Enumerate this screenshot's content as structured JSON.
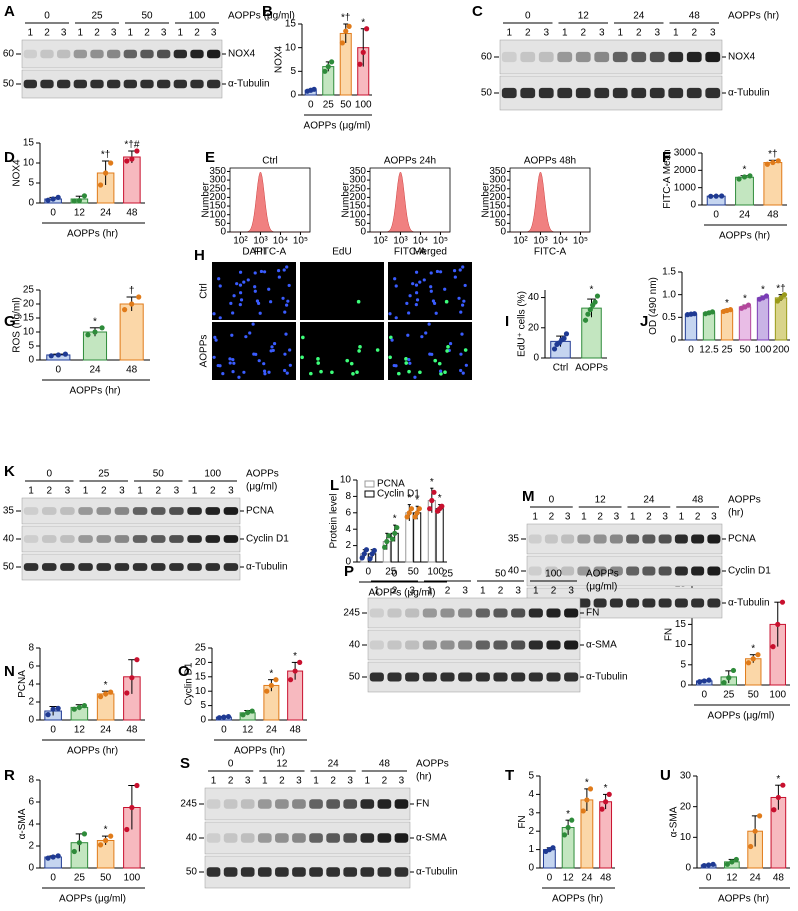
{
  "chart_data": [
    {
      "panel": "B",
      "type": "bar",
      "y_label": "NOX4",
      "x_label": "AOPPs (μg/ml)",
      "categories": [
        "0",
        "25",
        "50",
        "100"
      ],
      "values": [
        1,
        6,
        13,
        10
      ],
      "errors": [
        0.2,
        1,
        2,
        4
      ],
      "points": [
        [
          0.8,
          1,
          1.2
        ],
        [
          5,
          6,
          7
        ],
        [
          11,
          13.5,
          14.5
        ],
        [
          6.5,
          9,
          14
        ]
      ],
      "annotations": [
        null,
        null,
        "*†",
        "*"
      ],
      "colors": [
        "#c5d5f0",
        "#c3e6c0",
        "#fbd7a8",
        "#f7b9bf"
      ],
      "point_colors": [
        "#1f3a93",
        "#2e8b3a",
        "#e07b1a",
        "#c8102e"
      ],
      "ylim": [
        0,
        15
      ],
      "yticks": [
        0,
        5,
        10,
        15
      ]
    },
    {
      "panel": "D",
      "type": "bar",
      "y_label": "NOX4",
      "x_label": "AOPPs (hr)",
      "categories": [
        "0",
        "12",
        "24",
        "48"
      ],
      "values": [
        1,
        1,
        7.5,
        11.5
      ],
      "errors": [
        0.4,
        0.7,
        3,
        1.5
      ],
      "points": [
        [
          0.7,
          1,
          1.4
        ],
        [
          0.5,
          0.6,
          1.8
        ],
        [
          4.5,
          7.5,
          10
        ],
        [
          10.5,
          11,
          13
        ]
      ],
      "annotations": [
        null,
        null,
        "*†",
        "*†#"
      ],
      "colors": [
        "#c5d5f0",
        "#c3e6c0",
        "#fbd7a8",
        "#f7b9bf"
      ],
      "point_colors": [
        "#1f3a93",
        "#2e8b3a",
        "#e07b1a",
        "#c8102e"
      ],
      "ylim": [
        0,
        15
      ],
      "yticks": [
        0,
        5,
        10,
        15
      ]
    },
    {
      "panel": "F",
      "type": "bar",
      "y_label": "FITC-A Mean",
      "x_label": "AOPPs (hr)",
      "categories": [
        "0",
        "24",
        "48"
      ],
      "values": [
        510,
        1600,
        2450
      ],
      "errors": [
        20,
        90,
        130
      ],
      "points": [
        [
          500,
          510,
          520
        ],
        [
          1500,
          1620,
          1680
        ],
        [
          2350,
          2450,
          2550
        ]
      ],
      "annotations": [
        null,
        "*",
        "*†"
      ],
      "colors": [
        "#c5d5f0",
        "#c3e6c0",
        "#fbd7a8"
      ],
      "point_colors": [
        "#1f3a93",
        "#2e8b3a",
        "#e07b1a"
      ],
      "ylim": [
        0,
        3000
      ],
      "yticks": [
        0,
        1000,
        2000,
        3000
      ]
    },
    {
      "panel": "G",
      "type": "bar",
      "y_label": "ROS (ng/ml)",
      "x_label": "AOPPs (hr)",
      "categories": [
        "0",
        "24",
        "48"
      ],
      "values": [
        1.8,
        10,
        20
      ],
      "errors": [
        0.3,
        1.5,
        2.5
      ],
      "points": [
        [
          1.5,
          1.8,
          2.1
        ],
        [
          9,
          10,
          11.5
        ],
        [
          18,
          20,
          22.5
        ]
      ],
      "annotations": [
        null,
        "*",
        "†"
      ],
      "colors": [
        "#c5d5f0",
        "#c3e6c0",
        "#fbd7a8"
      ],
      "point_colors": [
        "#1f3a93",
        "#2e8b3a",
        "#e07b1a"
      ],
      "ylim": [
        0,
        25
      ],
      "yticks": [
        0,
        5,
        10,
        15,
        20,
        25
      ]
    },
    {
      "panel": "I",
      "type": "bar",
      "y_label": "EdU⁺ cells (%)",
      "categories": [
        "Ctrl",
        "AOPPs"
      ],
      "values": [
        11,
        33
      ],
      "errors": [
        3.5,
        6
      ],
      "points": [
        [
          6,
          9,
          10,
          12,
          13,
          16
        ],
        [
          25,
          29,
          32,
          35,
          37,
          41
        ]
      ],
      "annotations": [
        null,
        "*"
      ],
      "colors": [
        "#c5d5f0",
        "#c3e6c0"
      ],
      "point_colors": [
        "#1f3a93",
        "#2e8b3a"
      ],
      "ylim": [
        0,
        45
      ],
      "yticks": [
        0,
        20,
        40
      ]
    },
    {
      "panel": "J",
      "type": "bar",
      "y_label": "OD (490 nm)",
      "categories": [
        "0",
        "12.5",
        "25",
        "50",
        "100",
        "200"
      ],
      "values": [
        0.57,
        0.6,
        0.65,
        0.73,
        0.93,
        0.93
      ],
      "errors": [
        0.02,
        0.02,
        0.03,
        0.04,
        0.04,
        0.07
      ],
      "points": [
        [
          0.56,
          0.57,
          0.58
        ],
        [
          0.58,
          0.6,
          0.62
        ],
        [
          0.63,
          0.65,
          0.67
        ],
        [
          0.7,
          0.73,
          0.77
        ],
        [
          0.9,
          0.93,
          0.97
        ],
        [
          0.86,
          0.93,
          1.0
        ]
      ],
      "annotations": [
        null,
        null,
        "*",
        "*",
        "*",
        "*†"
      ],
      "colors": [
        "#c5d5f0",
        "#c3e6c0",
        "#fbd7a8",
        "#e9bde6",
        "#c9b3e6",
        "#d9d48a"
      ],
      "point_colors": [
        "#1f3a93",
        "#2e8b3a",
        "#e07b1a",
        "#b3479c",
        "#7a3db5",
        "#9a9a1a"
      ],
      "ylim": [
        0,
        1.5
      ],
      "yticks": [
        0,
        0.5,
        {
          "value": 1,
          "label": "1.0"
        },
        1.5
      ]
    },
    {
      "panel": "L",
      "type": "bar",
      "y_label": "Protein level",
      "x_label": "AOPPs (μg/ml)",
      "categories": [
        "0",
        "25",
        "50",
        "100"
      ],
      "point_colors": [
        "#1f3a93",
        "#2e8b3a",
        "#e07b1a",
        "#c8102e"
      ],
      "series": [
        {
          "name": "PCNA",
          "color": "#ffffff",
          "edge": "#999999",
          "values": [
            1,
            2.5,
            6,
            7.5
          ],
          "errors": [
            0.5,
            1,
            1,
            1.5
          ],
          "points": [
            [
              0.5,
              1,
              1.5
            ],
            [
              1.8,
              2.5,
              3.2
            ],
            [
              5.5,
              6,
              6.5
            ],
            [
              6.5,
              7.5,
              8.5
            ]
          ],
          "annotations": [
            null,
            null,
            "*",
            "*"
          ]
        },
        {
          "name": "Cyclin D1",
          "color": "#ffffff",
          "edge": "#000000",
          "values": [
            1,
            3.5,
            6,
            6.5
          ],
          "errors": [
            0.5,
            1,
            0.8,
            0.5
          ],
          "points": [
            [
              0.4,
              1,
              1.4
            ],
            [
              2.8,
              3.5,
              4.2
            ],
            [
              5.5,
              6,
              6.5
            ],
            [
              6.2,
              6.5,
              6.8
            ]
          ],
          "annotations": [
            null,
            "*",
            "*",
            "*"
          ]
        }
      ],
      "ylim": [
        0,
        10
      ],
      "yticks": [
        0,
        2,
        4,
        6,
        8,
        10
      ]
    },
    {
      "panel": "N",
      "type": "bar",
      "y_label": "PCNA",
      "x_label": "AOPPs (hr)",
      "categories": [
        "0",
        "12",
        "24",
        "48"
      ],
      "values": [
        1,
        1.4,
        2.9,
        4.8
      ],
      "errors": [
        0.5,
        0.3,
        0.3,
        1.9
      ],
      "points": [
        [
          0.6,
          1.2,
          1.3
        ],
        [
          1.2,
          1.4,
          1.6
        ],
        [
          2.6,
          2.9,
          3.1
        ],
        [
          3,
          4.7,
          6.7
        ]
      ],
      "annotations": [
        null,
        null,
        "*",
        null
      ],
      "colors": [
        "#c5d5f0",
        "#c3e6c0",
        "#fbd7a8",
        "#f7b9bf"
      ],
      "point_colors": [
        "#1f3a93",
        "#2e8b3a",
        "#e07b1a",
        "#c8102e"
      ],
      "ylim": [
        0,
        8
      ],
      "yticks": [
        0,
        2,
        4,
        6,
        8
      ]
    },
    {
      "panel": "O",
      "type": "bar",
      "y_label": "Cyclin D1",
      "x_label": "AOPPs (hr)",
      "categories": [
        "0",
        "12",
        "24",
        "48"
      ],
      "values": [
        1,
        2.5,
        12,
        17
      ],
      "errors": [
        0.2,
        0.8,
        2,
        3
      ],
      "points": [
        [
          0.8,
          1,
          1.2
        ],
        [
          1.8,
          2.6,
          3.1
        ],
        [
          10,
          12,
          14
        ],
        [
          14,
          17,
          20
        ]
      ],
      "annotations": [
        null,
        null,
        "*",
        "*"
      ],
      "colors": [
        "#c5d5f0",
        "#c3e6c0",
        "#fbd7a8",
        "#f7b9bf"
      ],
      "point_colors": [
        "#1f3a93",
        "#2e8b3a",
        "#e07b1a",
        "#c8102e"
      ],
      "ylim": [
        0,
        25
      ],
      "yticks": [
        0,
        5,
        10,
        15,
        20,
        25
      ]
    },
    {
      "panel": "Q",
      "type": "bar",
      "y_label": "FN",
      "x_label": "AOPPs (μg/ml)",
      "categories": [
        "0",
        "25",
        "50",
        "100"
      ],
      "values": [
        1,
        2,
        6.5,
        15
      ],
      "errors": [
        0.2,
        1.5,
        1,
        5.5
      ],
      "points": [
        [
          0.8,
          1,
          1.2
        ],
        [
          0.6,
          1.8,
          3.6
        ],
        [
          5.5,
          6.5,
          7.5
        ],
        [
          9.5,
          15,
          20.5
        ]
      ],
      "annotations": [
        null,
        null,
        "*",
        null
      ],
      "colors": [
        "#c5d5f0",
        "#c3e6c0",
        "#fbd7a8",
        "#f7b9bf"
      ],
      "point_colors": [
        "#1f3a93",
        "#2e8b3a",
        "#e07b1a",
        "#c8102e"
      ],
      "ylim": [
        0,
        25
      ],
      "yticks": [
        0,
        5,
        10,
        15,
        20,
        25
      ]
    },
    {
      "panel": "R",
      "type": "bar",
      "y_label": "α-SMA",
      "x_label": "AOPPs (μg/ml)",
      "categories": [
        "0",
        "25",
        "50",
        "100"
      ],
      "values": [
        1,
        2.3,
        2.5,
        5.5
      ],
      "errors": [
        0.1,
        0.8,
        0.4,
        2
      ],
      "points": [
        [
          0.9,
          1,
          1.1
        ],
        [
          1.5,
          2.3,
          3.1
        ],
        [
          2.1,
          2.5,
          2.9
        ],
        [
          3.5,
          5.5,
          7.5
        ]
      ],
      "annotations": [
        null,
        null,
        "*",
        null
      ],
      "colors": [
        "#c5d5f0",
        "#c3e6c0",
        "#fbd7a8",
        "#f7b9bf"
      ],
      "point_colors": [
        "#1f3a93",
        "#2e8b3a",
        "#e07b1a",
        "#c8102e"
      ],
      "ylim": [
        0,
        8
      ],
      "yticks": [
        0,
        2,
        4,
        6,
        8
      ]
    },
    {
      "panel": "T",
      "type": "bar",
      "y_label": "FN",
      "x_label": "AOPPs (hr)",
      "categories": [
        "0",
        "12",
        "24",
        "48"
      ],
      "values": [
        1,
        2.2,
        3.7,
        3.6
      ],
      "errors": [
        0.1,
        0.4,
        0.6,
        0.4
      ],
      "points": [
        [
          0.9,
          1,
          1.1
        ],
        [
          1.8,
          2.2,
          2.6
        ],
        [
          3.1,
          3.7,
          4.3
        ],
        [
          3.2,
          3.6,
          4
        ]
      ],
      "annotations": [
        null,
        "*",
        "*",
        "*"
      ],
      "colors": [
        "#c5d5f0",
        "#c3e6c0",
        "#fbd7a8",
        "#f7b9bf"
      ],
      "point_colors": [
        "#1f3a93",
        "#2e8b3a",
        "#e07b1a",
        "#c8102e"
      ],
      "ylim": [
        0,
        5
      ],
      "yticks": [
        0,
        1,
        2,
        3,
        4,
        5
      ]
    },
    {
      "panel": "U",
      "type": "bar",
      "y_label": "α-SMA",
      "x_label": "AOPPs (hr)",
      "categories": [
        "0",
        "12",
        "24",
        "48"
      ],
      "values": [
        1,
        2,
        12,
        23
      ],
      "errors": [
        0.2,
        0.8,
        5,
        4
      ],
      "points": [
        [
          0.8,
          1,
          1.2
        ],
        [
          1.2,
          2,
          2.8
        ],
        [
          7,
          12,
          17
        ],
        [
          19,
          23,
          27
        ]
      ],
      "annotations": [
        null,
        null,
        null,
        "*"
      ],
      "colors": [
        "#c5d5f0",
        "#c3e6c0",
        "#fbd7a8",
        "#f7b9bf"
      ],
      "point_colors": [
        "#1f3a93",
        "#2e8b3a",
        "#e07b1a",
        "#c8102e"
      ],
      "ylim": [
        0,
        30
      ],
      "yticks": [
        0,
        10,
        20,
        30
      ]
    }
  ],
  "blots": [
    {
      "panel": "A",
      "groups": [
        "0",
        "25",
        "50",
        "100"
      ],
      "lanes": [
        "1",
        "2",
        "3"
      ],
      "treatment": [
        "AOPPs (μg/ml)"
      ],
      "rows": [
        {
          "protein": "NOX4",
          "mw": "60"
        },
        {
          "protein": "α-Tubulin",
          "mw": "50"
        }
      ]
    },
    {
      "panel": "C",
      "groups": [
        "0",
        "12",
        "24",
        "48"
      ],
      "lanes": [
        "1",
        "2",
        "3"
      ],
      "treatment": [
        "AOPPs (hr)"
      ],
      "rows": [
        {
          "protein": "NOX4",
          "mw": "60"
        },
        {
          "protein": "α-Tubulin",
          "mw": "50"
        }
      ]
    },
    {
      "panel": "K",
      "groups": [
        "0",
        "25",
        "50",
        "100"
      ],
      "lanes": [
        "1",
        "2",
        "3"
      ],
      "treatment": [
        "AOPPs",
        "(μg/ml)"
      ],
      "rows": [
        {
          "protein": "PCNA",
          "mw": "35"
        },
        {
          "protein": "Cyclin D1",
          "mw": "40"
        },
        {
          "protein": "α-Tubulin",
          "mw": "50"
        }
      ]
    },
    {
      "panel": "M",
      "groups": [
        "0",
        "12",
        "24",
        "48"
      ],
      "lanes": [
        "1",
        "2",
        "3"
      ],
      "treatment": [
        "AOPPs",
        "(hr)"
      ],
      "rows": [
        {
          "protein": "PCNA",
          "mw": "35"
        },
        {
          "protein": "Cyclin D1",
          "mw": "40"
        },
        {
          "protein": "α-Tubulin",
          "mw": "50"
        }
      ]
    },
    {
      "panel": "P",
      "groups": [
        "0",
        "25",
        "50",
        "100"
      ],
      "lanes": [
        "1",
        "2",
        "3"
      ],
      "treatment": [
        "AOPPs",
        "(μg/ml)"
      ],
      "rows": [
        {
          "protein": "FN",
          "mw": "245"
        },
        {
          "protein": "α-SMA",
          "mw": "40"
        },
        {
          "protein": "α-Tubulin",
          "mw": "50"
        }
      ]
    },
    {
      "panel": "S",
      "groups": [
        "0",
        "12",
        "24",
        "48"
      ],
      "lanes": [
        "1",
        "2",
        "3"
      ],
      "treatment": [
        "AOPPs",
        "(hr)"
      ],
      "rows": [
        {
          "protein": "FN",
          "mw": "245"
        },
        {
          "protein": "α-SMA",
          "mw": "40"
        },
        {
          "protein": "α-Tubulin",
          "mw": "50"
        }
      ]
    }
  ],
  "flow": {
    "panel": "E",
    "titles": [
      "Ctrl",
      "AOPPs 24h",
      "AOPPs 48h"
    ],
    "y_label": "Number",
    "x_label": "FITC-A",
    "ylim": [
      0,
      370
    ],
    "yticks": [
      0,
      50,
      100,
      150,
      200,
      250,
      300,
      350
    ],
    "xlim": [
      30,
      300000
    ],
    "log_x": true,
    "xticks": [
      {
        "value": 100,
        "label": "10²"
      },
      {
        "value": 1000,
        "label": "10³"
      },
      {
        "value": 10000,
        "label": "10⁴"
      },
      {
        "value": 100000,
        "label": "10⁵"
      }
    ],
    "color": "#f08080"
  },
  "imaging": {
    "panel": "H",
    "columns": [
      "DAPI",
      "EdU",
      "Merged"
    ],
    "rows": [
      "Ctrl",
      "AOPPs"
    ]
  }
}
